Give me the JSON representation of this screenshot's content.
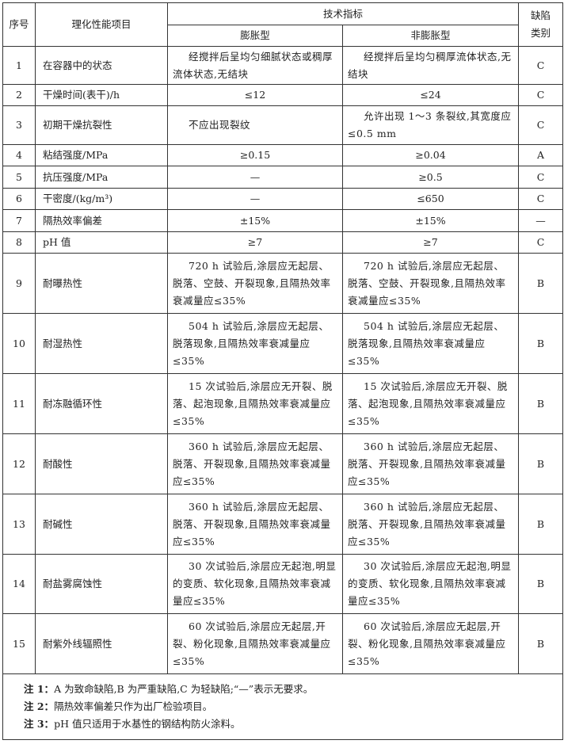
{
  "header": {
    "seq": "序号",
    "item": "理化性能项目",
    "tech": "技术指标",
    "expand": "膨胀型",
    "nonexpand": "非膨胀型",
    "defect": "缺陷类别"
  },
  "rows": [
    {
      "no": "1",
      "item": "在容器中的状态",
      "a": "经搅拌后呈均匀细腻状态或稠厚流体状态,无结块",
      "b": "经搅拌后呈均匀稠厚流体状态,无结块",
      "cat": "C"
    },
    {
      "no": "2",
      "item": "干燥时间(表干)/h",
      "a": "≤12",
      "b": "≤24",
      "cat": "C"
    },
    {
      "no": "3",
      "item": "初期干燥抗裂性",
      "a": "不应出现裂纹",
      "b": "允许出现 1～3 条裂纹,其宽度应≤0.5 mm",
      "cat": "C"
    },
    {
      "no": "4",
      "item": "粘结强度/MPa",
      "a": "≥0.15",
      "b": "≥0.04",
      "cat": "A"
    },
    {
      "no": "5",
      "item": "抗压强度/MPa",
      "a": "—",
      "b": "≥0.5",
      "cat": "C"
    },
    {
      "no": "6",
      "item": "干密度/(kg/m³)",
      "a": "—",
      "b": "≤650",
      "cat": "C"
    },
    {
      "no": "7",
      "item": "隔热效率偏差",
      "a": "±15%",
      "b": "±15%",
      "cat": "—"
    },
    {
      "no": "8",
      "item": "pH 值",
      "a": "≥7",
      "b": "≥7",
      "cat": "C"
    },
    {
      "no": "9",
      "item": "耐曝热性",
      "a": "720 h 试验后,涂层应无起层、脱落、空鼓、开裂现象,且隔热效率衰减量应≤35%",
      "b": "720 h 试验后,涂层应无起层、脱落、空鼓、开裂现象,且隔热效率衰减量应≤35%",
      "cat": "B"
    },
    {
      "no": "10",
      "item": "耐湿热性",
      "a": "504 h 试验后,涂层应无起层、脱落现象,且隔热效率衰减量应≤35%",
      "b": "504 h 试验后,涂层应无起层、脱落现象,且隔热效率衰减量应≤35%",
      "cat": "B"
    },
    {
      "no": "11",
      "item": "耐冻融循环性",
      "a": "15 次试验后,涂层应无开裂、脱落、起泡现象,且隔热效率衰减量应≤35%",
      "b": "15 次试验后,涂层应无开裂、脱落、起泡现象,且隔热效率衰减量应≤35%",
      "cat": "B"
    },
    {
      "no": "12",
      "item": "耐酸性",
      "a": "360 h 试验后,涂层应无起层、脱落、开裂现象,且隔热效率衰减量应≤35%",
      "b": "360 h 试验后,涂层应无起层、脱落、开裂现象,且隔热效率衰减量应≤35%",
      "cat": "B"
    },
    {
      "no": "13",
      "item": "耐碱性",
      "a": "360 h 试验后,涂层应无起层、脱落、开裂现象,且隔热效率衰减量应≤35%",
      "b": "360 h 试验后,涂层应无起层、脱落、开裂现象,且隔热效率衰减量应≤35%",
      "cat": "B"
    },
    {
      "no": "14",
      "item": "耐盐雾腐蚀性",
      "a": "30 次试验后,涂层应无起泡,明显的变质、软化现象,且隔热效率衰减量应≤35%",
      "b": "30 次试验后,涂层应无起泡,明显的变质、软化现象,且隔热效率衰减量应≤35%",
      "cat": "B"
    },
    {
      "no": "15",
      "item": "耐紫外线辐照性",
      "a": "60 次试验后,涂层应无起层,开裂、粉化现象,且隔热效率衰减量应≤35%",
      "b": "60 次试验后,涂层应无起层,开裂、粉化现象,且隔热效率衰减量应≤35%",
      "cat": "B"
    }
  ],
  "notes": [
    {
      "label": "注 1：",
      "text": "A 为致命缺陷,B 为严重缺陷,C 为轻缺陷;“—”表示无要求。"
    },
    {
      "label": "注 2：",
      "text": "隔热效率偏差只作为出厂检验项目。"
    },
    {
      "label": "注 3：",
      "text": "pH 值只适用于水基性的钢结构防火涂料。"
    }
  ]
}
